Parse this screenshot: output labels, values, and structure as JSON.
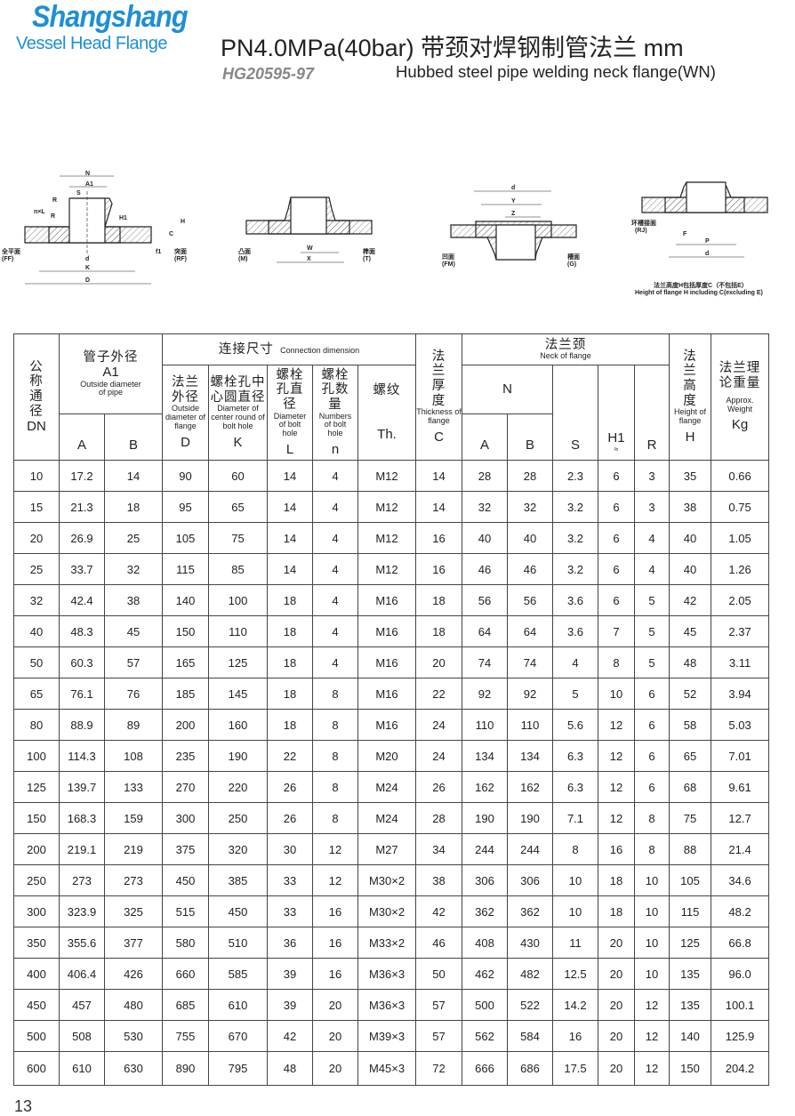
{
  "header": {
    "logo_line1": "Shangshang",
    "logo_line2": "Vessel Head Flange",
    "title": "PN4.0MPa(40bar) 带颈对焊钢制管法兰  mm",
    "standard": "HG20595-97",
    "subtitle": "Hubbed steel pipe welding neck flange(WN)",
    "brand_color": "#1e8fd6"
  },
  "diagrams": {
    "wn": {
      "labels": [
        "N",
        "A1",
        "S",
        "R",
        "n×L",
        "R",
        "H1",
        "H",
        "C",
        "f1",
        "d",
        "K",
        "D"
      ],
      "left_face": "全平面\n(FF)",
      "right_face": "突面\n(RF)"
    },
    "mt": {
      "labels": [
        "C",
        "f2",
        "W",
        "X",
        "C",
        "f3"
      ],
      "left_face": "凸面\n(M)",
      "right_face": "榫面\n(T)"
    },
    "fmg": {
      "labels": [
        "d",
        "Y",
        "Z",
        "f2",
        "f3",
        "f3",
        "C",
        "C"
      ],
      "left_face": "凹面\n(FM)",
      "right_face": "槽面\n(G)"
    },
    "rj": {
      "labels": [
        "C",
        "E",
        "F",
        "P",
        "d"
      ],
      "face": "环槽接面\n(RJ)",
      "note_cn": "法兰高度H包括厚度C（不包括E）",
      "note_en": "Height of flange H including C(excluding E)"
    }
  },
  "table": {
    "head": {
      "dn": "公称通径",
      "dn_letter": "DN",
      "pipe_cn": "管子外径",
      "pipe_sym": "A1",
      "pipe_en": "Outside diameter of pipe",
      "pipe_a": "A",
      "pipe_b": "B",
      "conn_cn": "连接尺寸",
      "conn_en": "Connection dimension",
      "d_cn": "法兰外径",
      "d_en": "Outside diameter of flange",
      "d": "D",
      "k_cn": "螺栓孔中心圆直径",
      "k_en": "Diameter of center round of bolt hole",
      "k": "K",
      "l_cn": "螺栓孔直径",
      "l_en": "Diameter of bolt hole",
      "l": "L",
      "n_cn": "螺栓孔数量",
      "n_en": "Numbers of bolt hole",
      "n": "n",
      "th_cn": "螺纹",
      "th": "Th.",
      "c_cn": "法兰厚度",
      "c_en": "Thickness of flange",
      "c": "C",
      "neck_cn": "法兰颈",
      "neck_en": "Neck of flange",
      "neck_n": "N",
      "neck_a": "A",
      "neck_b": "B",
      "s": "S",
      "h1": "H1",
      "h1_approx": "≈",
      "r": "R",
      "h_cn": "法兰高度",
      "h_en": "Height of flange",
      "h": "H",
      "kg_cn": "法兰理论重量",
      "kg_en": "Approx. Weight",
      "kg": "Kg"
    },
    "rows": [
      [
        "10",
        "17.2",
        "14",
        "90",
        "60",
        "14",
        "4",
        "M12",
        "14",
        "28",
        "28",
        "2.3",
        "6",
        "3",
        "35",
        "0.66"
      ],
      [
        "15",
        "21.3",
        "18",
        "95",
        "65",
        "14",
        "4",
        "M12",
        "14",
        "32",
        "32",
        "3.2",
        "6",
        "3",
        "38",
        "0.75"
      ],
      [
        "20",
        "26.9",
        "25",
        "105",
        "75",
        "14",
        "4",
        "M12",
        "16",
        "40",
        "40",
        "3.2",
        "6",
        "4",
        "40",
        "1.05"
      ],
      [
        "25",
        "33.7",
        "32",
        "115",
        "85",
        "14",
        "4",
        "M12",
        "16",
        "46",
        "46",
        "3.2",
        "6",
        "4",
        "40",
        "1.26"
      ],
      [
        "32",
        "42.4",
        "38",
        "140",
        "100",
        "18",
        "4",
        "M16",
        "18",
        "56",
        "56",
        "3.6",
        "6",
        "5",
        "42",
        "2.05"
      ],
      [
        "40",
        "48.3",
        "45",
        "150",
        "110",
        "18",
        "4",
        "M16",
        "18",
        "64",
        "64",
        "3.6",
        "7",
        "5",
        "45",
        "2.37"
      ],
      [
        "50",
        "60.3",
        "57",
        "165",
        "125",
        "18",
        "4",
        "M16",
        "20",
        "74",
        "74",
        "4",
        "8",
        "5",
        "48",
        "3.11"
      ],
      [
        "65",
        "76.1",
        "76",
        "185",
        "145",
        "18",
        "8",
        "M16",
        "22",
        "92",
        "92",
        "5",
        "10",
        "6",
        "52",
        "3.94"
      ],
      [
        "80",
        "88.9",
        "89",
        "200",
        "160",
        "18",
        "8",
        "M16",
        "24",
        "110",
        "110",
        "5.6",
        "12",
        "6",
        "58",
        "5.03"
      ],
      [
        "100",
        "114.3",
        "108",
        "235",
        "190",
        "22",
        "8",
        "M20",
        "24",
        "134",
        "134",
        "6.3",
        "12",
        "6",
        "65",
        "7.01"
      ],
      [
        "125",
        "139.7",
        "133",
        "270",
        "220",
        "26",
        "8",
        "M24",
        "26",
        "162",
        "162",
        "6.3",
        "12",
        "6",
        "68",
        "9.61"
      ],
      [
        "150",
        "168.3",
        "159",
        "300",
        "250",
        "26",
        "8",
        "M24",
        "28",
        "190",
        "190",
        "7.1",
        "12",
        "8",
        "75",
        "12.7"
      ],
      [
        "200",
        "219.1",
        "219",
        "375",
        "320",
        "30",
        "12",
        "M27",
        "34",
        "244",
        "244",
        "8",
        "16",
        "8",
        "88",
        "21.4"
      ],
      [
        "250",
        "273",
        "273",
        "450",
        "385",
        "33",
        "12",
        "M30×2",
        "38",
        "306",
        "306",
        "10",
        "18",
        "10",
        "105",
        "34.6"
      ],
      [
        "300",
        "323.9",
        "325",
        "515",
        "450",
        "33",
        "16",
        "M30×2",
        "42",
        "362",
        "362",
        "10",
        "18",
        "10",
        "115",
        "48.2"
      ],
      [
        "350",
        "355.6",
        "377",
        "580",
        "510",
        "36",
        "16",
        "M33×2",
        "46",
        "408",
        "430",
        "11",
        "20",
        "10",
        "125",
        "66.8"
      ],
      [
        "400",
        "406.4",
        "426",
        "660",
        "585",
        "39",
        "16",
        "M36×3",
        "50",
        "462",
        "482",
        "12.5",
        "20",
        "10",
        "135",
        "96.0"
      ],
      [
        "450",
        "457",
        "480",
        "685",
        "610",
        "39",
        "20",
        "M36×3",
        "57",
        "500",
        "522",
        "14.2",
        "20",
        "12",
        "135",
        "100.1"
      ],
      [
        "500",
        "508",
        "530",
        "755",
        "670",
        "42",
        "20",
        "M39×3",
        "57",
        "562",
        "584",
        "16",
        "20",
        "12",
        "140",
        "125.9"
      ],
      [
        "600",
        "610",
        "630",
        "890",
        "795",
        "48",
        "20",
        "M45×3",
        "72",
        "666",
        "686",
        "17.5",
        "20",
        "12",
        "150",
        "204.2"
      ]
    ]
  },
  "page_number": "13"
}
